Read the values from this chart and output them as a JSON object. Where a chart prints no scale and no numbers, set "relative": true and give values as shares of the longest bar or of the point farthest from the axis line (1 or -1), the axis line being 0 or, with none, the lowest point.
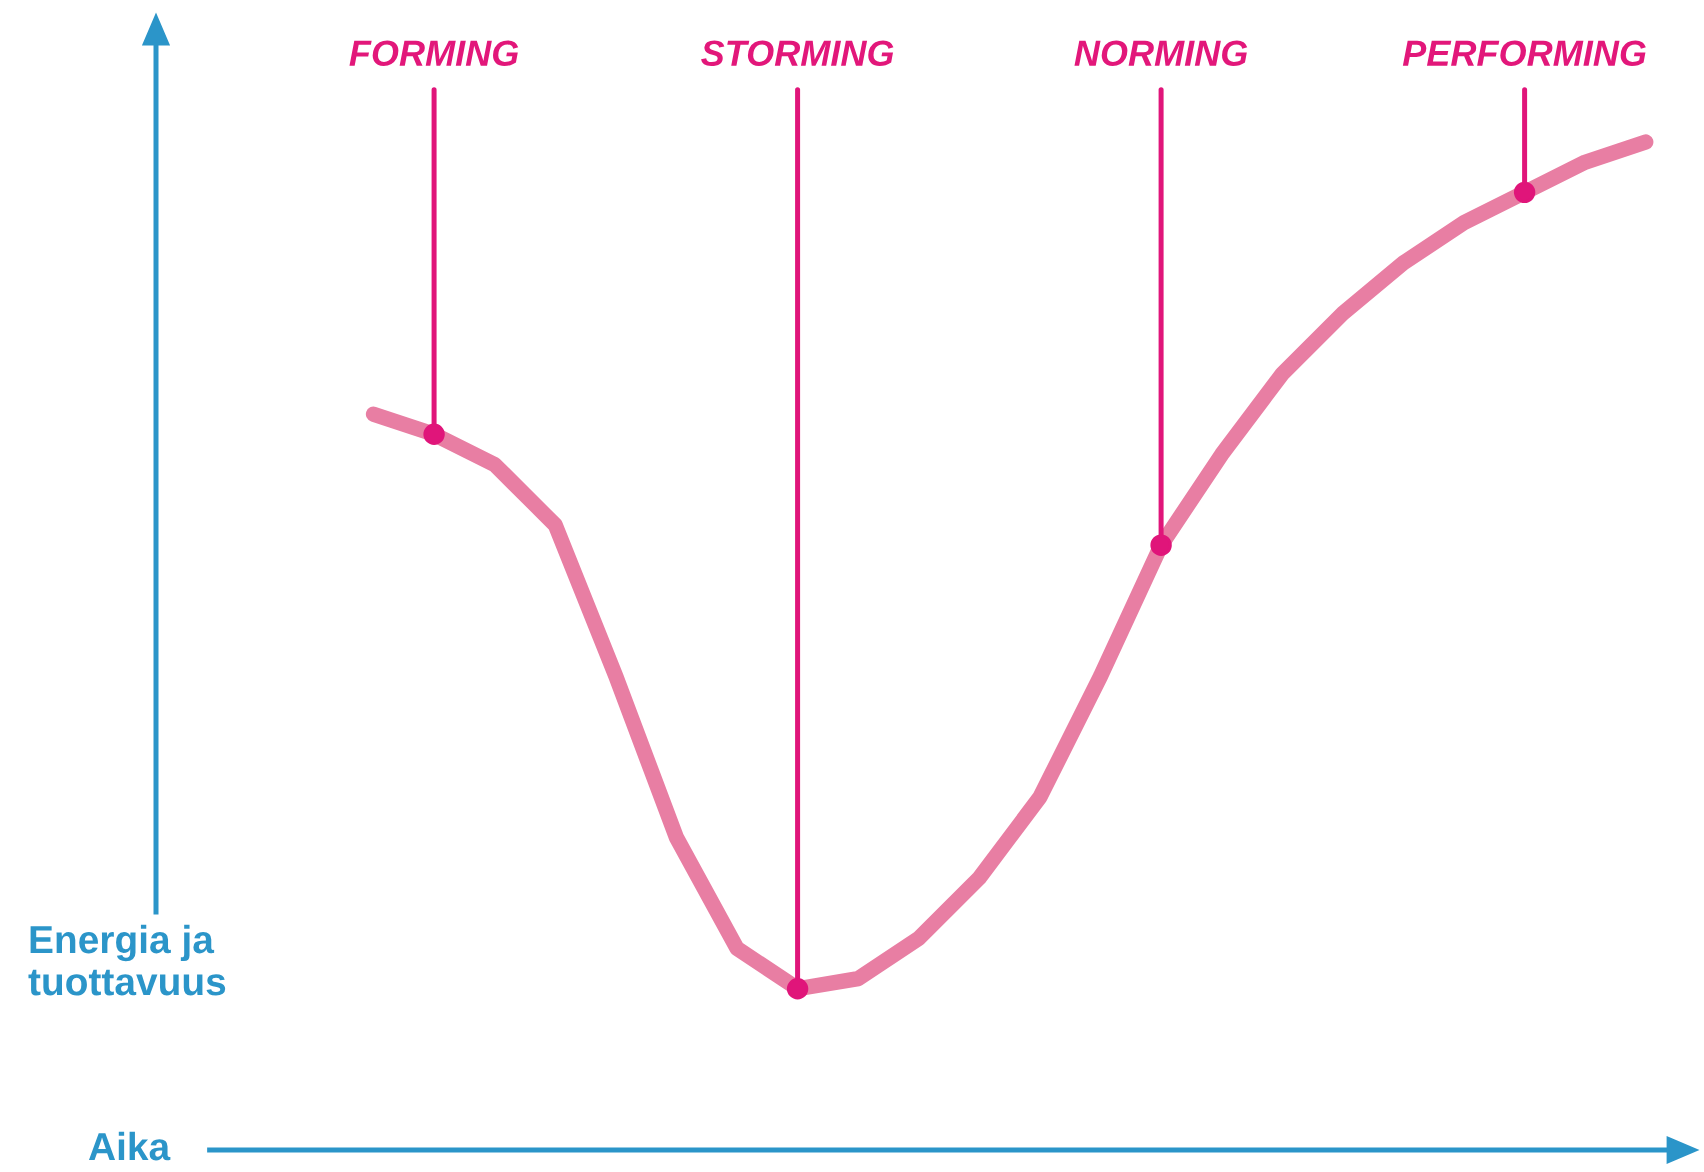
{
  "chart_data": {
    "type": "line",
    "relative": true,
    "xlabel": "Aika",
    "ylabel": "Energia ja tuottavuus",
    "categories": [
      null,
      "FORMING",
      null,
      null,
      null,
      null,
      null,
      "STORMING",
      null,
      null,
      null,
      null,
      null,
      "NORMING",
      null,
      null,
      null,
      null,
      null,
      "PERFORMING",
      null,
      null
    ],
    "series": [
      {
        "color": "#e87ea3",
        "values": [
          0.73,
          0.71,
          0.68,
          0.62,
          0.47,
          0.31,
          0.2,
          0.16,
          0.17,
          0.21,
          0.27,
          0.35,
          0.47,
          0.6,
          0.69,
          0.77,
          0.83,
          0.88,
          0.92,
          0.95,
          0.98,
          1.0
        ]
      },
      {
        "type": "scatter",
        "color": "#e0157a",
        "values": [
          null,
          0.71,
          null,
          null,
          null,
          null,
          null,
          0.16,
          null,
          null,
          null,
          null,
          null,
          0.6,
          null,
          null,
          null,
          null,
          null,
          0.95,
          null,
          null
        ]
      }
    ]
  }
}
